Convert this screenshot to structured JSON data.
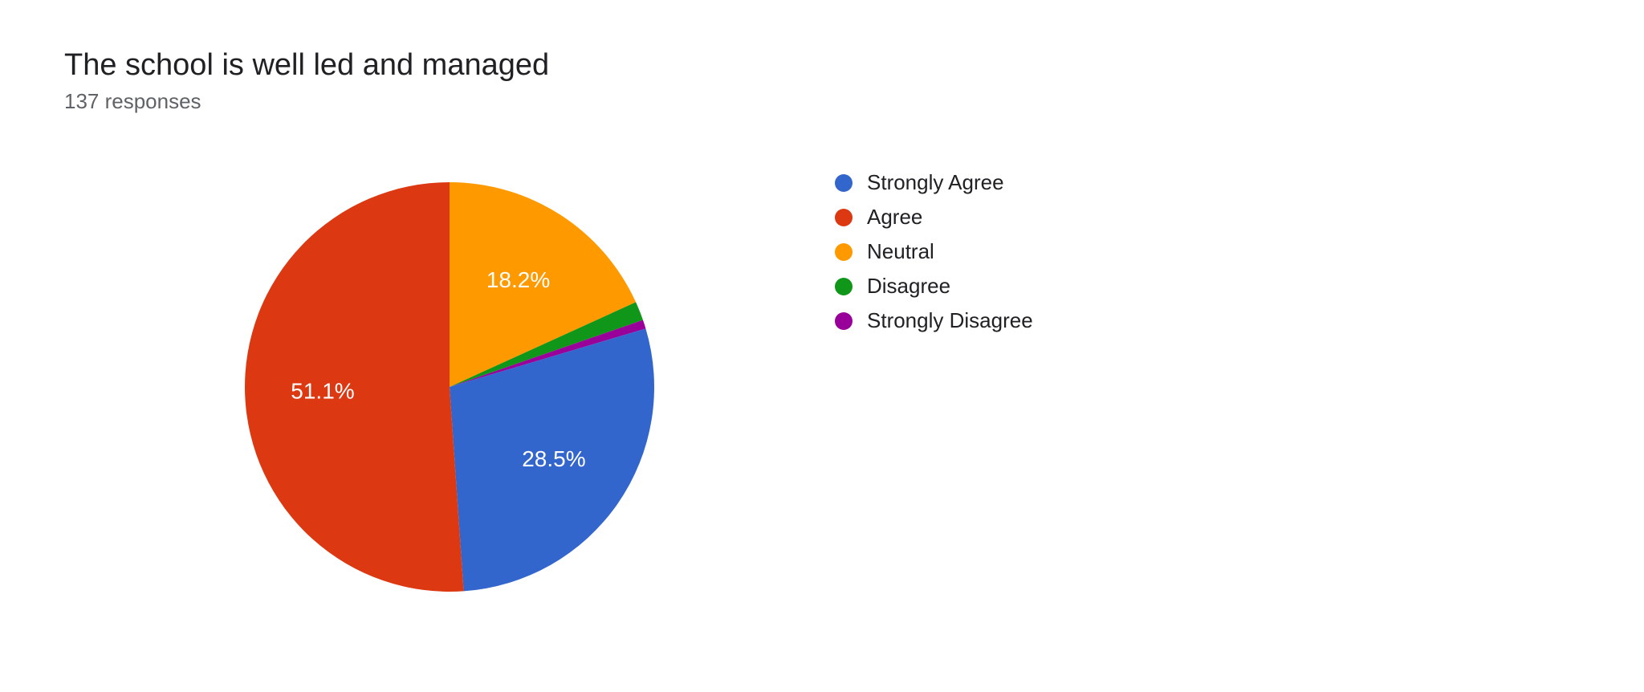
{
  "header": {
    "title": "The school is well led and managed",
    "subtitle": "137 responses"
  },
  "chart": {
    "type": "pie",
    "background_color": "#ffffff",
    "pie_radius": 255,
    "start_angle_deg": -90,
    "label_fontsize": 28,
    "label_color": "#ffffff",
    "legend_fontsize": 26,
    "legend_text_color": "#202124",
    "slice_label_min_percent": 5,
    "slices": [
      {
        "key": "neutral",
        "label": "Neutral",
        "value": 18.2,
        "display": "18.2%",
        "color": "#ff9900"
      },
      {
        "key": "disagree",
        "label": "Disagree",
        "value": 1.5,
        "display": "1.5%",
        "color": "#109618"
      },
      {
        "key": "strongly_disagree",
        "label": "Strongly Disagree",
        "value": 0.7,
        "display": "0.7%",
        "color": "#990099"
      },
      {
        "key": "strongly_agree",
        "label": "Strongly Agree",
        "value": 28.5,
        "display": "28.5%",
        "color": "#3366cc"
      },
      {
        "key": "agree",
        "label": "Agree",
        "value": 51.1,
        "display": "51.1%",
        "color": "#dc3912"
      }
    ],
    "legend_order": [
      "strongly_agree",
      "agree",
      "neutral",
      "disagree",
      "strongly_disagree"
    ]
  }
}
